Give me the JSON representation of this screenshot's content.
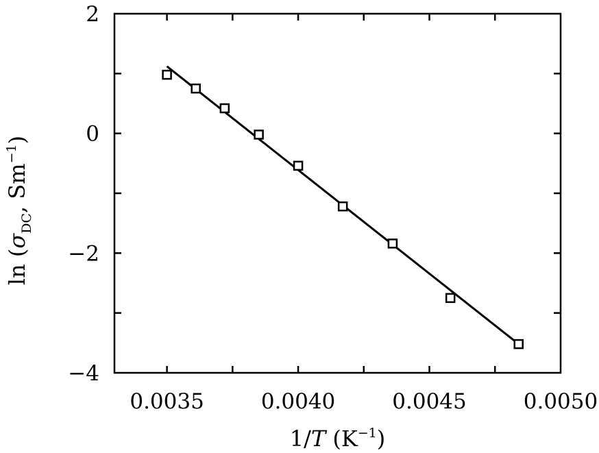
{
  "chart_data": {
    "type": "scatter",
    "title": "",
    "xlabel": {
      "prefix": "1/",
      "var": "T",
      "unit_open": " (K",
      "unit_sup": "−1",
      "unit_close": ")"
    },
    "ylabel": {
      "prefix": "ln (",
      "var": "σ",
      "sub": "DC",
      "mid": ", Sm",
      "sup": "−1",
      "suffix": ")"
    },
    "xlim": [
      0.0033,
      0.005
    ],
    "ylim": [
      -4,
      2
    ],
    "x_ticks": [
      {
        "value": 0.0035,
        "label": "0.0035"
      },
      {
        "value": 0.004,
        "label": "0.0040"
      },
      {
        "value": 0.0045,
        "label": "0.0045"
      },
      {
        "value": 0.005,
        "label": "0.0050"
      }
    ],
    "x_minor_ticks": [
      0.00375,
      0.00425,
      0.00475
    ],
    "y_ticks": [
      {
        "value": 2,
        "label": "2"
      },
      {
        "value": 0,
        "label": "0"
      },
      {
        "value": -2,
        "label": "−2"
      },
      {
        "value": -4,
        "label": "−4"
      }
    ],
    "y_minor_ticks": [
      1,
      -1,
      -3
    ],
    "grid": false,
    "series": [
      {
        "marker": "open-square",
        "x": [
          0.0035,
          0.00361,
          0.00372,
          0.00385,
          0.004,
          0.00417,
          0.00436,
          0.00458,
          0.00484
        ],
        "y": [
          0.98,
          0.75,
          0.42,
          -0.02,
          -0.54,
          -1.22,
          -1.84,
          -2.75,
          -3.52
        ]
      }
    ],
    "fit_line": {
      "x": [
        0.0035,
        0.00484
      ],
      "y": [
        1.12,
        -3.52
      ]
    }
  }
}
